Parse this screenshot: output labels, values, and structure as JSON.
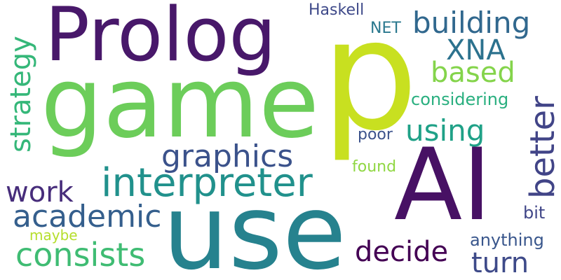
{
  "word_cloud": {
    "words": [
      {
        "id": "p",
        "text": "p",
        "color": "#c8e020"
      },
      {
        "id": "game",
        "text": "game",
        "color": "#6ccd5a"
      },
      {
        "id": "prolog",
        "text": "Prolog",
        "color": "#48186a"
      },
      {
        "id": "ai",
        "text": "AI",
        "color": "#471164"
      },
      {
        "id": "use",
        "text": "use",
        "color": "#26828e"
      },
      {
        "id": "interpreter",
        "text": "interpreter",
        "color": "#21918c"
      },
      {
        "id": "graphics",
        "text": "graphics",
        "color": "#3b528b"
      },
      {
        "id": "academic",
        "text": "academic",
        "color": "#355f8d"
      },
      {
        "id": "consists",
        "text": "consists",
        "color": "#3fbc73"
      },
      {
        "id": "work",
        "text": "work",
        "color": "#472d7b"
      },
      {
        "id": "strategy",
        "text": "strategy",
        "color": "#35b779"
      },
      {
        "id": "building",
        "text": "building",
        "color": "#31688e"
      },
      {
        "id": "xna",
        "text": "XNA",
        "color": "#2c728e"
      },
      {
        "id": "based",
        "text": "based",
        "color": "#84d44b"
      },
      {
        "id": "better",
        "text": "better",
        "color": "#414487"
      },
      {
        "id": "using",
        "text": "using",
        "color": "#1fa187"
      },
      {
        "id": "decide",
        "text": "decide",
        "color": "#440154"
      },
      {
        "id": "turn",
        "text": "turn",
        "color": "#3e4a89"
      },
      {
        "id": "haskell",
        "text": "Haskell",
        "color": "#3e4989"
      },
      {
        "id": "net",
        "text": "NET",
        "color": "#2a788e"
      },
      {
        "id": "considering",
        "text": "considering",
        "color": "#29af7f"
      },
      {
        "id": "poor",
        "text": "poor",
        "color": "#3b528b"
      },
      {
        "id": "found",
        "text": "found",
        "color": "#90d743"
      },
      {
        "id": "maybe",
        "text": "maybe",
        "color": "#b5de2b"
      },
      {
        "id": "anything",
        "text": "anything",
        "color": "#39568c"
      },
      {
        "id": "bit",
        "text": "bit",
        "color": "#404688"
      }
    ]
  }
}
